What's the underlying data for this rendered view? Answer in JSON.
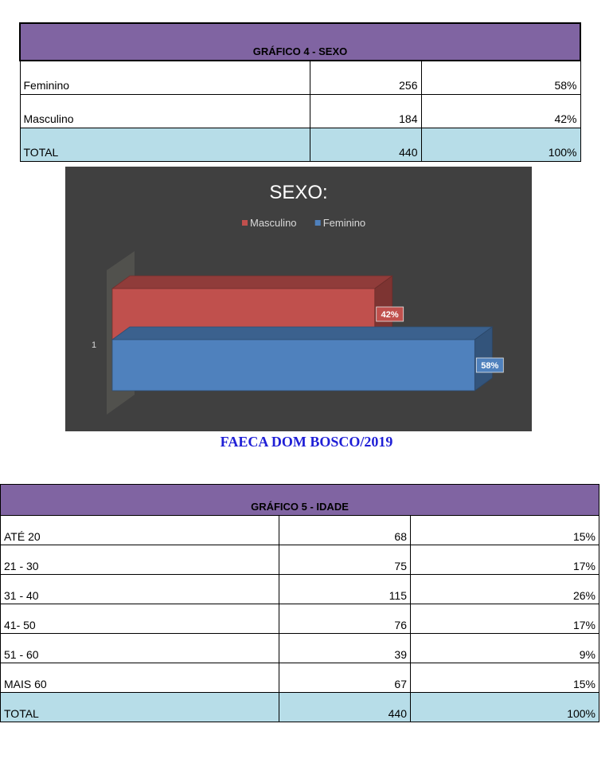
{
  "table_sexo": {
    "title": "GRÁFICO 4 - SEXO",
    "rows": [
      {
        "label": "Feminino",
        "count": "256",
        "pct": "58%"
      },
      {
        "label": "Masculino",
        "count": "184",
        "pct": "42%"
      }
    ],
    "total": {
      "label": "TOTAL",
      "count": "440",
      "pct": "100%"
    }
  },
  "chart_data": {
    "type": "bar",
    "orientation": "horizontal",
    "three_d": true,
    "title": "SEXO:",
    "categories": [
      "1"
    ],
    "series": [
      {
        "name": "Masculino",
        "values": [
          42
        ],
        "data_label": "42%",
        "color": "#c0504d"
      },
      {
        "name": "Feminino",
        "values": [
          58
        ],
        "data_label": "58%",
        "color": "#4f81bd"
      }
    ],
    "xlim": [
      0,
      60
    ],
    "legend": "top",
    "grid": false,
    "background": "#404040"
  },
  "caption": "FAECA DOM BOSCO/2019",
  "table_idade": {
    "title": "GRÁFICO 5 - IDADE",
    "rows": [
      {
        "label": "ATÉ 20",
        "count": "68",
        "pct": "15%"
      },
      {
        "label": "21 - 30",
        "count": "75",
        "pct": "17%"
      },
      {
        "label": "31 - 40",
        "count": "115",
        "pct": "26%"
      },
      {
        "label": "41- 50",
        "count": "76",
        "pct": "17%"
      },
      {
        "label": "51 - 60",
        "count": "39",
        "pct": "9%"
      },
      {
        "label": "MAIS 60",
        "count": "67",
        "pct": "15%"
      }
    ],
    "total": {
      "label": "TOTAL",
      "count": "440",
      "pct": "100%"
    }
  }
}
